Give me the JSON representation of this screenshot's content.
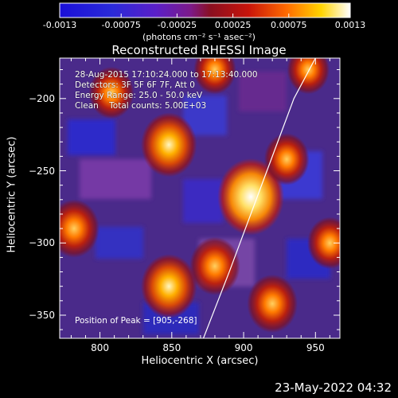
{
  "colorbar": {
    "tick_labels": [
      "-0.0013",
      "-0.00075",
      "-0.00025",
      "0.00025",
      "0.00075",
      "0.0013"
    ],
    "tick_values": [
      -0.0013,
      -0.00075,
      -0.00025,
      0.00025,
      0.00075,
      0.0013
    ],
    "units": "(photons cm⁻² s⁻¹ asec⁻²)"
  },
  "annotations": {
    "line1": "28-Aug-2015 17:10:24.000 to 17:13:40.000",
    "line2": "Detectors: 3F 5F 6F 7F, Att 0",
    "line3": "Energy Range: 25.0 - 50.0 keV",
    "line4": "Clean    Total counts: 5.00E+03",
    "peak": "Position of Peak = [905,-268]"
  },
  "footer": {
    "date": "23-May-2022 04:32"
  },
  "chart_data": {
    "type": "heatmap",
    "title": "Reconstructed RHESSI Image",
    "xlabel": "Heliocentric X (arcsec)",
    "ylabel": "Heliocentric Y (arcsec)",
    "xlim": [
      772,
      967
    ],
    "ylim": [
      -366,
      -172
    ],
    "x_ticks": [
      800,
      850,
      900,
      950
    ],
    "y_ticks": [
      -200,
      -250,
      -300,
      -350
    ],
    "x_tick_labels": [
      "800",
      "850",
      "900",
      "950"
    ],
    "y_tick_labels": [
      "−200",
      "−250",
      "−300",
      "−350"
    ],
    "colormap": "blue-purple-red-yellow-white",
    "colorbar_range": [
      -0.0013,
      0.0013
    ],
    "sources": [
      {
        "x": 905,
        "y": -268,
        "value": 0.0013
      },
      {
        "x": 880,
        "y": -316,
        "value": 0.0007
      },
      {
        "x": 848,
        "y": -232,
        "value": 0.0009
      },
      {
        "x": 848,
        "y": -330,
        "value": 0.0009
      },
      {
        "x": 808,
        "y": -196,
        "value": 0.0005
      },
      {
        "x": 782,
        "y": -290,
        "value": 0.0007
      },
      {
        "x": 920,
        "y": -342,
        "value": 0.0007
      },
      {
        "x": 930,
        "y": -242,
        "value": 0.0005
      },
      {
        "x": 960,
        "y": -300,
        "value": 0.0005
      },
      {
        "x": 945,
        "y": -180,
        "value": 0.0004
      },
      {
        "x": 880,
        "y": -180,
        "value": 0.0004
      }
    ],
    "limb": [
      [
        950,
        -172
      ],
      [
        935,
        -200
      ],
      [
        920,
        -240
      ],
      [
        905,
        -280
      ],
      [
        890,
        -320
      ],
      [
        872,
        -366
      ]
    ]
  }
}
